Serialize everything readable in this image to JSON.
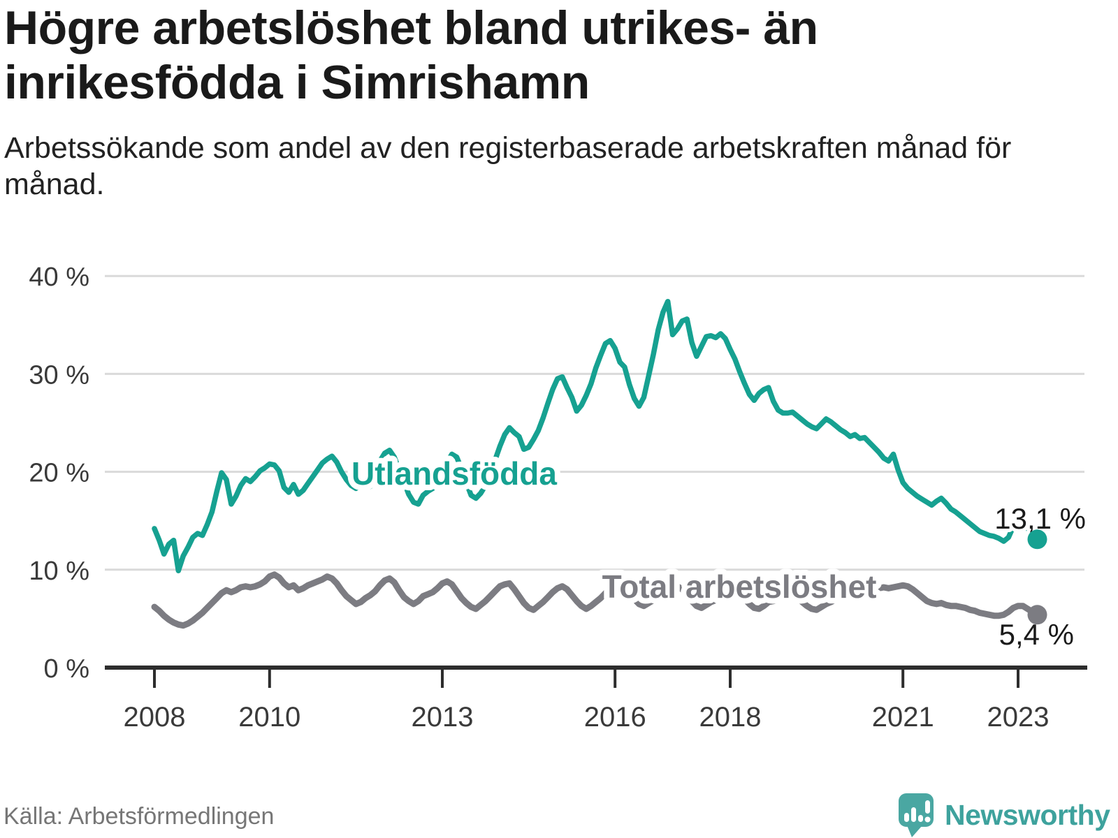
{
  "header": {
    "title": "Högre arbetslöshet bland utrikes- än inrikesfödda i Simrishamn",
    "subtitle": "Arbetssökande som andel av den registerbaserade arbetskraften månad för månad."
  },
  "footer": {
    "source": "Källa: Arbetsförmedlingen",
    "brand": "Newsworthy"
  },
  "colors": {
    "teal": "#16A191",
    "gray": "#7C7C82",
    "text": "#1A1A1A",
    "axis": "#2D2D2D",
    "axis_text": "#3A3A3A",
    "grid": "#DADADA",
    "muted": "#767676",
    "brand_teal": "#3EA29D"
  },
  "chart_data": {
    "type": "line",
    "unit": "%",
    "frequency": "monthly",
    "x_start": "2008-01",
    "x_end": "2023-05",
    "ylim": [
      0,
      40
    ],
    "grid": "horizontal",
    "legend_position": "inline-labels",
    "x_tick_years": [
      2008,
      2010,
      2013,
      2016,
      2018,
      2021,
      2023
    ],
    "x_tick_labels": [
      "2008",
      "2010",
      "2013",
      "2016",
      "2018",
      "2021",
      "2023"
    ],
    "y_ticks": [
      {
        "value": 40,
        "label": "40 %"
      },
      {
        "value": 30,
        "label": "30 %"
      },
      {
        "value": 20,
        "label": "20 %"
      },
      {
        "value": 10,
        "label": "10 %"
      },
      {
        "value": 0,
        "label": "0 %"
      }
    ],
    "series": [
      {
        "name": "Utlandsfödda",
        "color": "#16A191",
        "end_label": "13,1 %",
        "end_value": 13.1,
        "values": [
          14.2,
          13.0,
          11.6,
          12.6,
          13.0,
          9.9,
          11.4,
          12.3,
          13.3,
          13.7,
          13.5,
          14.6,
          15.9,
          18.0,
          19.9,
          19.2,
          16.7,
          17.5,
          18.6,
          19.3,
          19.0,
          19.5,
          20.1,
          20.4,
          20.8,
          20.7,
          20.1,
          18.4,
          17.9,
          18.7,
          17.7,
          18.1,
          18.8,
          19.5,
          20.2,
          20.9,
          21.3,
          21.6,
          21.0,
          20.0,
          19.2,
          18.6,
          18.3,
          18.6,
          19.0,
          18.5,
          19.6,
          21.1,
          21.9,
          22.2,
          21.5,
          20.2,
          19.0,
          17.7,
          16.9,
          16.7,
          17.6,
          18.0,
          18.3,
          19.0,
          19.9,
          21.0,
          21.8,
          21.5,
          20.3,
          18.9,
          17.6,
          17.3,
          17.8,
          18.6,
          19.8,
          21.2,
          22.6,
          23.8,
          24.5,
          24.0,
          23.6,
          22.3,
          22.5,
          23.3,
          24.2,
          25.5,
          27.0,
          28.4,
          29.5,
          29.7,
          28.6,
          27.6,
          26.2,
          26.8,
          27.8,
          29.0,
          30.6,
          31.9,
          33.1,
          33.4,
          32.6,
          31.2,
          30.7,
          28.9,
          27.5,
          26.7,
          27.6,
          29.8,
          32.0,
          34.5,
          36.3,
          37.4,
          34.0,
          34.6,
          35.4,
          35.6,
          33.2,
          31.8,
          32.8,
          33.8,
          33.9,
          33.7,
          34.1,
          33.6,
          32.5,
          31.5,
          30.2,
          29.0,
          27.9,
          27.3,
          28.0,
          28.4,
          28.6,
          27.2,
          26.3,
          26.0,
          26.0,
          26.1,
          25.7,
          25.3,
          24.9,
          24.6,
          24.4,
          24.9,
          25.4,
          25.1,
          24.7,
          24.3,
          24.0,
          23.6,
          23.8,
          23.4,
          23.5,
          23.0,
          22.5,
          22.0,
          21.4,
          21.1,
          21.8,
          20.2,
          18.9,
          18.3,
          17.9,
          17.5,
          17.2,
          16.9,
          16.6,
          17.0,
          17.3,
          16.8,
          16.2,
          15.9,
          15.5,
          15.1,
          14.7,
          14.3,
          13.9,
          13.7,
          13.5,
          13.4,
          13.2,
          12.9,
          13.3,
          14.4,
          15.5,
          15.0,
          14.2,
          13.6,
          13.1
        ]
      },
      {
        "name": "Total arbetslöshet",
        "color": "#7C7C82",
        "end_label": "5,4 %",
        "end_value": 5.4,
        "values": [
          6.2,
          5.8,
          5.3,
          4.9,
          4.6,
          4.4,
          4.3,
          4.5,
          4.8,
          5.2,
          5.6,
          6.1,
          6.6,
          7.1,
          7.6,
          7.9,
          7.7,
          7.9,
          8.2,
          8.3,
          8.2,
          8.3,
          8.5,
          8.8,
          9.3,
          9.5,
          9.2,
          8.6,
          8.2,
          8.4,
          7.9,
          8.1,
          8.4,
          8.6,
          8.8,
          9.0,
          9.3,
          9.1,
          8.6,
          7.9,
          7.3,
          6.9,
          6.5,
          6.7,
          7.1,
          7.4,
          7.8,
          8.4,
          8.9,
          9.1,
          8.7,
          7.9,
          7.2,
          6.8,
          6.5,
          6.8,
          7.3,
          7.5,
          7.7,
          8.1,
          8.6,
          8.8,
          8.5,
          7.8,
          7.1,
          6.6,
          6.2,
          6.0,
          6.4,
          6.8,
          7.3,
          7.8,
          8.3,
          8.5,
          8.6,
          8.0,
          7.3,
          6.6,
          6.1,
          5.9,
          6.3,
          6.7,
          7.2,
          7.7,
          8.1,
          8.3,
          8.0,
          7.4,
          6.8,
          6.3,
          6.0,
          6.3,
          6.7,
          7.1,
          7.6,
          8.1,
          8.6,
          8.7,
          8.4,
          7.7,
          7.0,
          6.5,
          6.3,
          6.6,
          6.9,
          7.1,
          7.4,
          7.8,
          8.2,
          8.3,
          8.0,
          7.4,
          6.8,
          6.3,
          6.1,
          6.4,
          6.7,
          6.9,
          7.2,
          7.5,
          7.8,
          7.9,
          7.6,
          7.0,
          6.5,
          6.1,
          6.0,
          6.3,
          6.7,
          6.8,
          7.0,
          7.2,
          7.4,
          7.5,
          7.2,
          6.7,
          6.3,
          6.0,
          5.9,
          6.2,
          6.5,
          6.7,
          7.0,
          7.3,
          7.6,
          7.7,
          7.9,
          8.2,
          8.3,
          8.2,
          8.0,
          8.1,
          8.2,
          8.1,
          8.2,
          8.3,
          8.4,
          8.3,
          8.0,
          7.6,
          7.2,
          6.8,
          6.6,
          6.5,
          6.6,
          6.4,
          6.3,
          6.3,
          6.2,
          6.1,
          5.9,
          5.8,
          5.6,
          5.5,
          5.4,
          5.3,
          5.3,
          5.4,
          5.7,
          6.1,
          6.3,
          6.3,
          6.0,
          5.7,
          5.4
        ]
      }
    ]
  }
}
